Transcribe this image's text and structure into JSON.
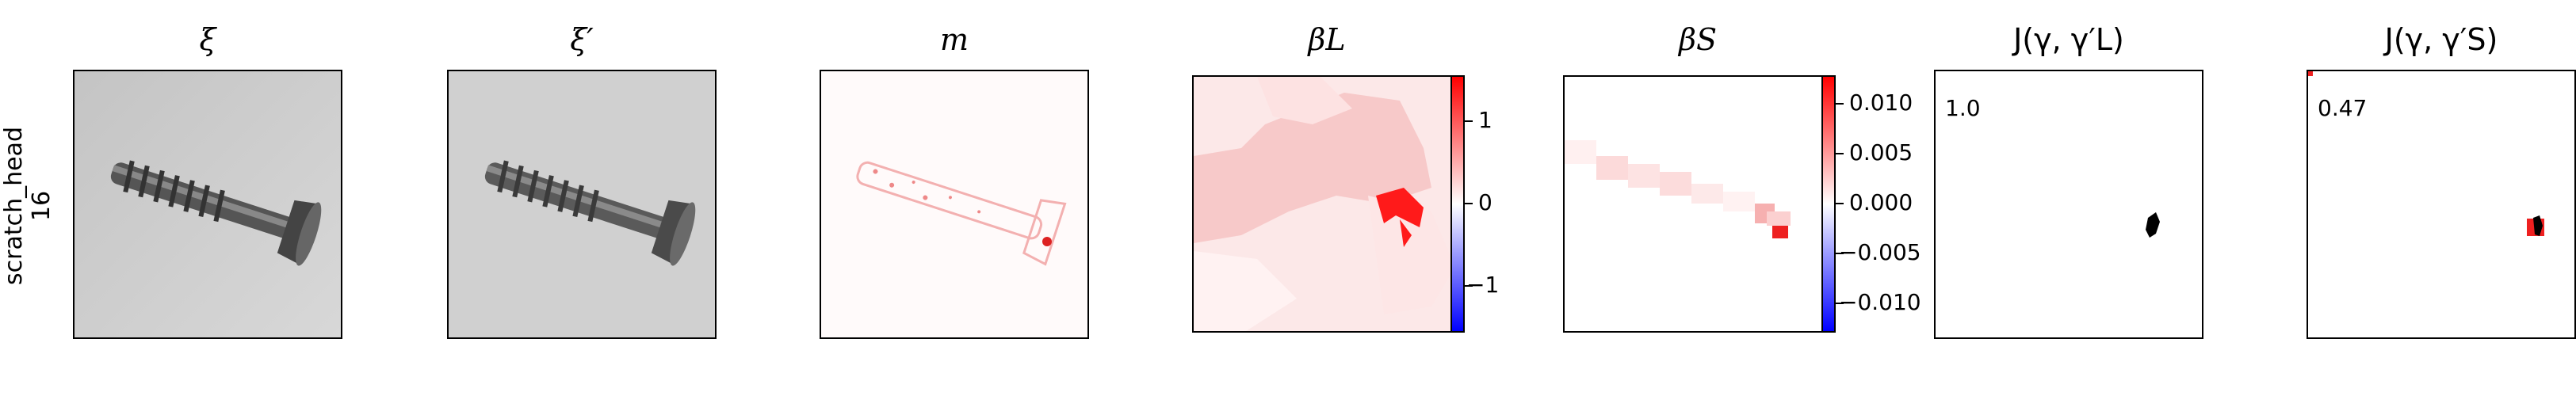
{
  "row_label": {
    "line1": "scratch_head",
    "line2": "16"
  },
  "panels": [
    {
      "title": "ξ"
    },
    {
      "title": "ξ′"
    },
    {
      "title": "m"
    },
    {
      "title": "βL"
    },
    {
      "title": "βS"
    },
    {
      "title": "J(γ, γ′L)"
    },
    {
      "title": "J(γ, γ′S)"
    }
  ],
  "colorbar_L": {
    "ticks": [
      "1",
      "0",
      "−1"
    ],
    "colors": {
      "max": "#ff0000",
      "mid": "#ffffff",
      "min": "#0000ff"
    }
  },
  "colorbar_S": {
    "ticks": [
      "0.010",
      "0.005",
      "0.000",
      "−0.005",
      "−0.010"
    ]
  },
  "jaccard": {
    "L_value": "1.0",
    "S_value": "0.47"
  }
}
